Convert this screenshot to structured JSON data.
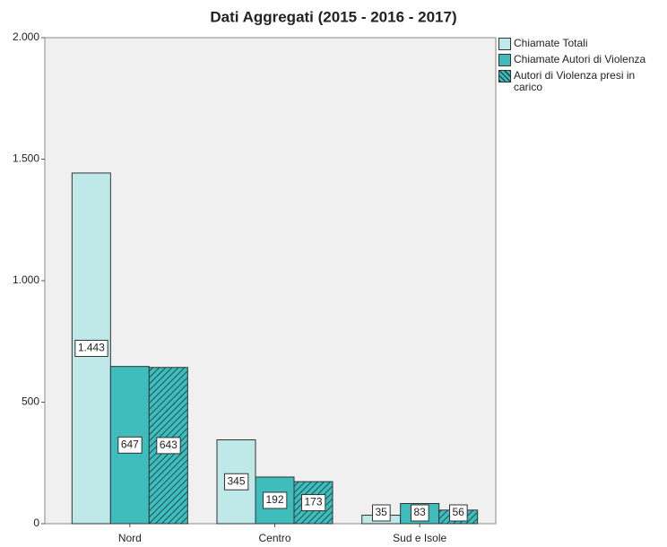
{
  "chart_data": {
    "type": "bar",
    "title": "Dati Aggregati (2015 - 2016 - 2017)",
    "categories": [
      "Nord",
      "Centro",
      "Sud e Isole"
    ],
    "series": [
      {
        "name": "Chiamate Totali",
        "color": "#bfe9e9",
        "values": [
          1443,
          345,
          35
        ],
        "value_labels": [
          "1.443",
          "345",
          "35"
        ]
      },
      {
        "name": "Chiamate Autori di Violenza",
        "color": "#3fbdbd",
        "values": [
          647,
          192,
          83
        ]
      },
      {
        "name": "Autori di Violenza presi in carico",
        "color": "#3fbdbd",
        "hatch": true,
        "values": [
          643,
          173,
          56
        ]
      }
    ],
    "ylim": [
      0,
      2000
    ],
    "yticks": [
      0,
      500,
      {
        "value": 1000,
        "label": "1.000"
      },
      {
        "value": 1500,
        "label": "1.500"
      },
      {
        "value": 2000,
        "label": "2.000"
      }
    ],
    "legend": "right"
  }
}
